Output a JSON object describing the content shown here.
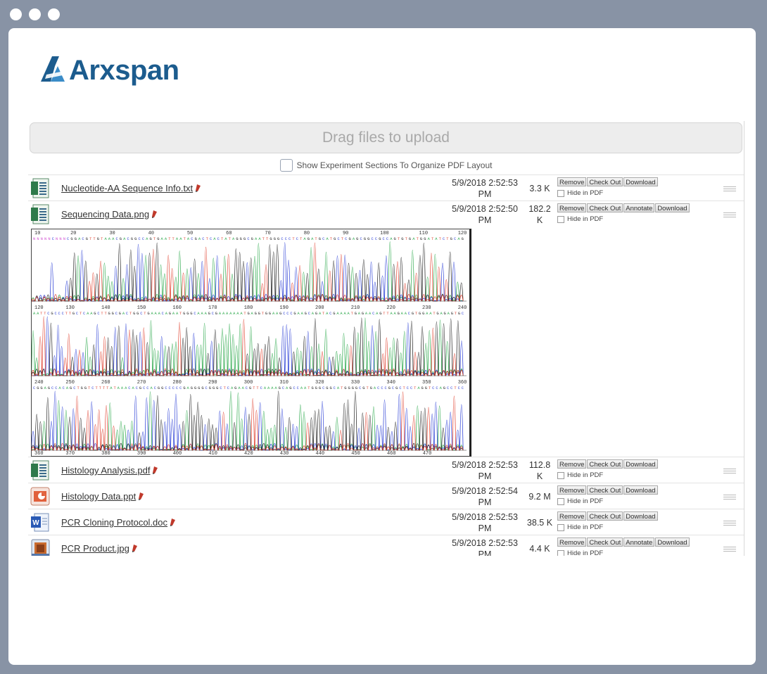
{
  "window": {
    "dots": 3
  },
  "brand": {
    "name": "Arxspan",
    "colors": {
      "primary": "#1c5c8e",
      "accent": "#3a8cc8"
    }
  },
  "upload": {
    "dropzone_label": "Drag files to upload"
  },
  "pdf_layout": {
    "label": "Show Experiment Sections To Organize PDF Layout",
    "checked": false
  },
  "hide_in_pdf_label": "Hide in PDF",
  "files": [
    {
      "name": "Nucleotide-AA Sequence Info.txt",
      "icon": "text-file-icon",
      "date_line1": "5/9/2018 2:52:53",
      "date_line2": "PM",
      "size_line1": "3.3 K",
      "size_line2": "",
      "buttons": [
        "Remove",
        "Check Out",
        "Download"
      ]
    },
    {
      "name": "Sequencing Data.png",
      "icon": "text-file-icon",
      "date_line1": "5/9/2018 2:52:50",
      "date_line2": "PM",
      "size_line1": "182.2",
      "size_line2": "K",
      "buttons": [
        "Remove",
        "Check Out",
        "Annotate",
        "Download"
      ]
    },
    {
      "name": "Histology Analysis.pdf",
      "icon": "text-file-icon",
      "date_line1": "5/9/2018 2:52:53",
      "date_line2": "PM",
      "size_line1": "112.8",
      "size_line2": "K",
      "buttons": [
        "Remove",
        "Check Out",
        "Download"
      ]
    },
    {
      "name": "Histology Data.ppt",
      "icon": "powerpoint-file-icon",
      "date_line1": "5/9/2018 2:52:54",
      "date_line2": "PM",
      "size_line1": "9.2 M",
      "size_line2": "",
      "buttons": [
        "Remove",
        "Check Out",
        "Download"
      ]
    },
    {
      "name": "PCR Cloning Protocol.doc",
      "icon": "word-file-icon",
      "date_line1": "5/9/2018 2:52:53",
      "date_line2": "PM",
      "size_line1": "38.5 K",
      "size_line2": "",
      "buttons": [
        "Remove",
        "Check Out",
        "Download"
      ]
    },
    {
      "name": "PCR Product.jpg",
      "icon": "image-file-icon",
      "date_line1": "5/9/2018 2:52:53",
      "date_line2": "PM",
      "size_line1": "4.4 K",
      "size_line2": "",
      "buttons": [
        "Remove",
        "Check Out",
        "Annotate",
        "Download"
      ]
    }
  ],
  "chromatogram": {
    "panels": [
      {
        "ticks": [
          "10",
          "20",
          "30",
          "40",
          "50",
          "60",
          "70",
          "80",
          "90",
          "100",
          "110",
          "120"
        ],
        "sequence": "NN NNN CNN NCGG ACG TTGT AAAC GACG GCCA GTG AAT TAATAC GACTCACTATA GGGCGAATTGGGCCCTCTAGATGCATGCTCGAGCGGCCGCCAGTGTGATGGATATCTGCAG"
      },
      {
        "ticks": [
          "120",
          "130",
          "140",
          "150",
          "160",
          "170",
          "180",
          "190",
          "200",
          "210",
          "220",
          "230",
          "240"
        ],
        "sequence": "AATTCGCCCTTGCTCAAGCTTGGCGACTGGCTGAAACAGAATGGGCAAAGCGAAAAAAATGAGGTGGAAGCCCGAAGCAGATACGAAAATGAGAACAGTTAAGAACGTGGAATGAGAGTGC"
      },
      {
        "ticks": [
          "240",
          "250",
          "260",
          "270",
          "280",
          "290",
          "300",
          "310",
          "320",
          "330",
          "340",
          "350",
          "360"
        ],
        "sequence": "CGGAGCCACAGCTGGTCTTTTATAAACACGCCACGGCCCCCGAGGGGCGGGCTCAGAACGTTCAAAAGCAGCCAATGGGCGGCATGGGGCGTGACCCGCGCTCCTAGGTCCAGCCTCC"
      }
    ],
    "bottom_ticks": [
      "360",
      "370",
      "380",
      "390",
      "400",
      "410",
      "420",
      "430",
      "440",
      "450",
      "460",
      "470"
    ],
    "base_colors": {
      "A": "#2aa84a",
      "C": "#2b3fd6",
      "G": "#222222",
      "T": "#e0412f"
    }
  }
}
